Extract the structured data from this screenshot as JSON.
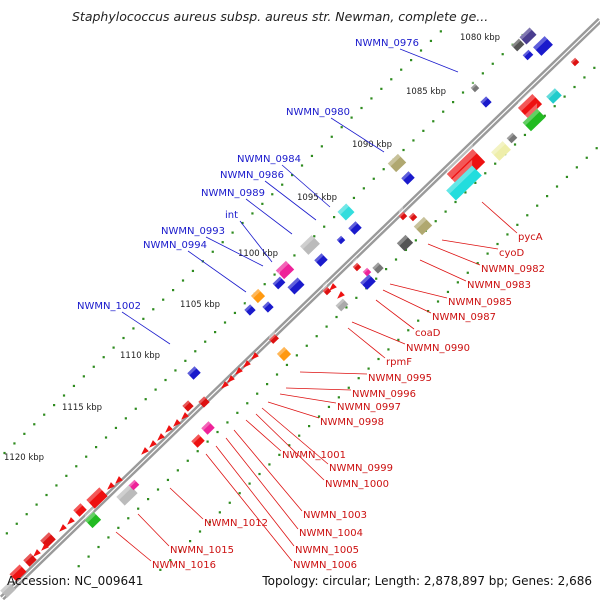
{
  "title": "Staphylococcus aureus subsp. aureus str. Newman, complete ge...",
  "footer": {
    "accession": "Accession: NC_009641",
    "summary": "Topology: circular; Length: 2,878,897 bp; Genes: 2,686"
  },
  "colors": {
    "backbone": "#8c8c8c",
    "tick": "#2e8b1e",
    "top_label": "#1a1acc",
    "bottom_label": "#cc1111",
    "connector_top": "#1a1acc",
    "connector_bottom": "#dd1111"
  },
  "kbp_labels": [
    "1080 kbp",
    "1085 kbp",
    "1090 kbp",
    "1095 kbp",
    "1100 kbp",
    "1105 kbp",
    "1110 kbp",
    "1115 kbp",
    "1120 kbp"
  ],
  "top_genes": [
    "NWMN_0976",
    "NWMN_0980",
    "NWMN_0984",
    "NWMN_0986",
    "NWMN_0989",
    "int",
    "NWMN_0993",
    "NWMN_0994",
    "NWMN_1002"
  ],
  "bottom_genes": [
    "pycA",
    "cyoD",
    "NWMN_0982",
    "NWMN_0983",
    "NWMN_0985",
    "NWMN_0987",
    "coaD",
    "NWMN_0990",
    "rpmF",
    "NWMN_0995",
    "NWMN_0996",
    "NWMN_0997",
    "NWMN_0998",
    "NWMN_1001",
    "NWMN_0999",
    "NWMN_1000",
    "NWMN_1003",
    "NWMN_1012",
    "NWMN_1004",
    "NWMN_1005",
    "NWMN_1015",
    "NWMN_1006",
    "NWMN_1016"
  ]
}
